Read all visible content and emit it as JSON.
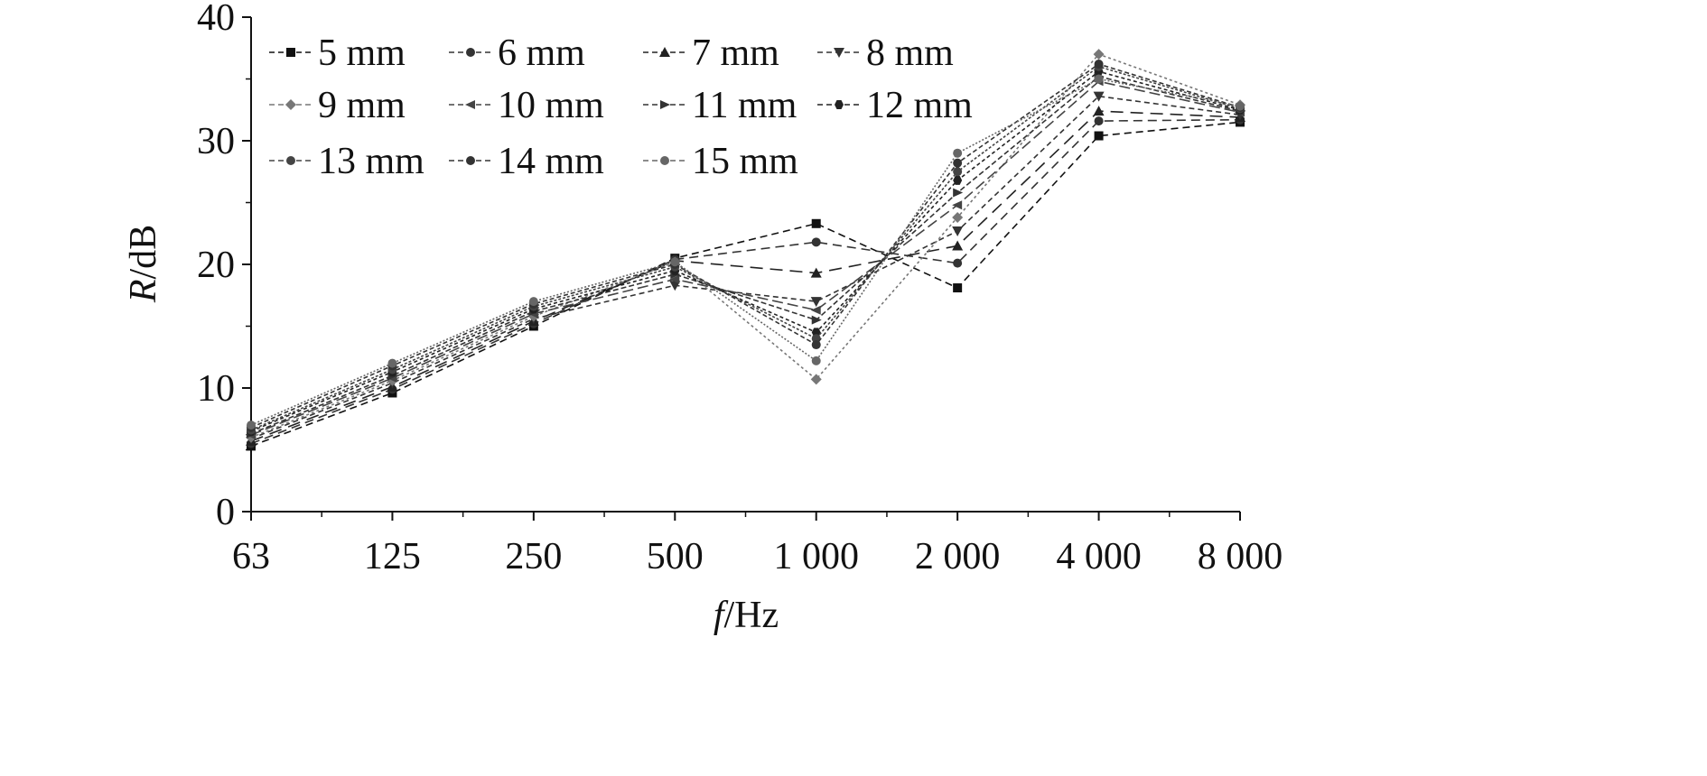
{
  "chart_data": {
    "type": "line",
    "title": "",
    "xlabel_italic": "f",
    "xlabel_rest": "/Hz",
    "ylabel_italic": "R",
    "ylabel_rest": "/dB",
    "categories": [
      "63",
      "125",
      "250",
      "500",
      "1 000",
      "2 000",
      "4 000",
      "8 000"
    ],
    "ylim": [
      0,
      40
    ],
    "yticks": [
      "0",
      "10",
      "20",
      "30",
      "40"
    ],
    "grid": false,
    "legend_position": "top-left",
    "series": [
      {
        "name": "5 mm",
        "marker": "square",
        "color": "#111111",
        "values": [
          5.3,
          9.6,
          15.0,
          20.5,
          23.3,
          18.1,
          30.4,
          31.5
        ]
      },
      {
        "name": "6 mm",
        "marker": "circle",
        "color": "#333333",
        "values": [
          5.5,
          9.9,
          15.2,
          20.4,
          21.8,
          20.1,
          31.6,
          31.7
        ]
      },
      {
        "name": "7 mm",
        "marker": "triangle",
        "color": "#222222",
        "values": [
          5.7,
          10.1,
          15.4,
          20.3,
          19.3,
          21.5,
          32.4,
          31.9
        ]
      },
      {
        "name": "8 mm",
        "marker": "tri-down",
        "color": "#333333",
        "values": [
          5.9,
          10.4,
          15.6,
          18.3,
          17.0,
          22.7,
          33.6,
          32.1
        ]
      },
      {
        "name": "9 mm",
        "marker": "diamond",
        "color": "#777777",
        "values": [
          6.0,
          10.6,
          15.8,
          20.2,
          10.7,
          23.8,
          37.0,
          32.9
        ]
      },
      {
        "name": "10 mm",
        "marker": "tri-left",
        "color": "#444444",
        "values": [
          6.2,
          10.8,
          16.0,
          18.8,
          16.3,
          24.8,
          34.8,
          32.3
        ]
      },
      {
        "name": "11 mm",
        "marker": "tri-right",
        "color": "#333333",
        "values": [
          6.3,
          11.0,
          16.2,
          19.2,
          15.5,
          25.8,
          35.2,
          32.4
        ]
      },
      {
        "name": "12 mm",
        "marker": "hexagon",
        "color": "#222222",
        "values": [
          6.5,
          11.3,
          16.4,
          19.5,
          14.5,
          26.8,
          35.6,
          32.5
        ]
      },
      {
        "name": "13 mm",
        "marker": "circle",
        "color": "#444444",
        "values": [
          6.6,
          11.5,
          16.6,
          19.8,
          14.0,
          27.5,
          36.0,
          32.6
        ]
      },
      {
        "name": "14 mm",
        "marker": "circle",
        "color": "#333333",
        "values": [
          6.8,
          11.8,
          16.8,
          20.0,
          13.5,
          28.2,
          36.2,
          32.7
        ]
      },
      {
        "name": "15 mm",
        "marker": "circle",
        "color": "#666666",
        "values": [
          7.0,
          12.0,
          17.0,
          20.2,
          12.2,
          29.0,
          35.0,
          32.8
        ]
      }
    ]
  }
}
